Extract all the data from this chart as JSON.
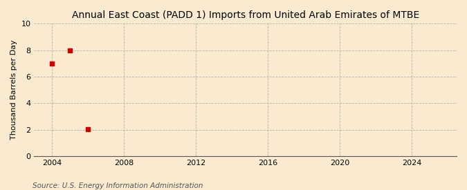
{
  "title": "Annual East Coast (PADD 1) Imports from United Arab Emirates of MTBE",
  "ylabel": "Thousand Barrels per Day",
  "source": "Source: U.S. Energy Information Administration",
  "background_color": "#faebd0",
  "plot_background_color": "#faebd0",
  "data_points": [
    {
      "year": 2004,
      "value": 6.969
    },
    {
      "year": 2005,
      "value": 7.973
    },
    {
      "year": 2006,
      "value": 2.007
    }
  ],
  "marker_color": "#cc0000",
  "marker_style": "s",
  "marker_size": 4,
  "xlim": [
    2003.0,
    2026.5
  ],
  "ylim": [
    0,
    10
  ],
  "xticks": [
    2004,
    2008,
    2012,
    2016,
    2020,
    2024
  ],
  "yticks": [
    0,
    2,
    4,
    6,
    8,
    10
  ],
  "grid_color": "#aaaaaa",
  "grid_style": "--",
  "title_fontsize": 10,
  "label_fontsize": 8,
  "tick_fontsize": 8,
  "source_fontsize": 7.5
}
